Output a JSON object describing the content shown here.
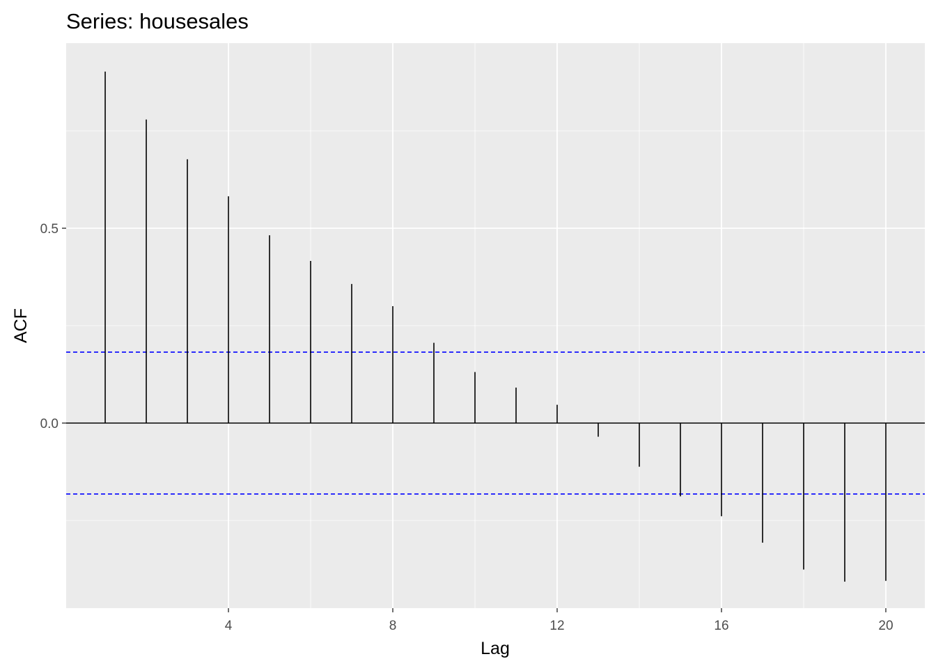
{
  "chart_data": {
    "type": "bar",
    "title": "Series: housesales",
    "xlabel": "Lag",
    "ylabel": "ACF",
    "x": [
      1,
      2,
      3,
      4,
      5,
      6,
      7,
      8,
      9,
      10,
      11,
      12,
      13,
      14,
      15,
      16,
      17,
      18,
      19,
      20
    ],
    "values": [
      0.902,
      0.779,
      0.677,
      0.582,
      0.482,
      0.416,
      0.357,
      0.3,
      0.206,
      0.131,
      0.091,
      0.047,
      -0.035,
      -0.112,
      -0.188,
      -0.239,
      -0.307,
      -0.376,
      -0.407,
      -0.405
    ],
    "ci": 0.182,
    "xlim": [
      0.05,
      20.95
    ],
    "ylim": [
      -0.475,
      0.975
    ],
    "xticks": [
      4,
      8,
      12,
      16,
      20
    ],
    "xtick_labels": [
      "4",
      "8",
      "12",
      "16",
      "20"
    ],
    "yticks": [
      0,
      0.5
    ],
    "ytick_labels": [
      "0.0",
      "0.5"
    ],
    "grid": true,
    "colors": {
      "panel_background": "#EBEBEB",
      "grid_major": "#FFFFFF",
      "bars": "#000000",
      "ci_line": "#0000FF",
      "tick_text": "#4D4D4D"
    }
  }
}
